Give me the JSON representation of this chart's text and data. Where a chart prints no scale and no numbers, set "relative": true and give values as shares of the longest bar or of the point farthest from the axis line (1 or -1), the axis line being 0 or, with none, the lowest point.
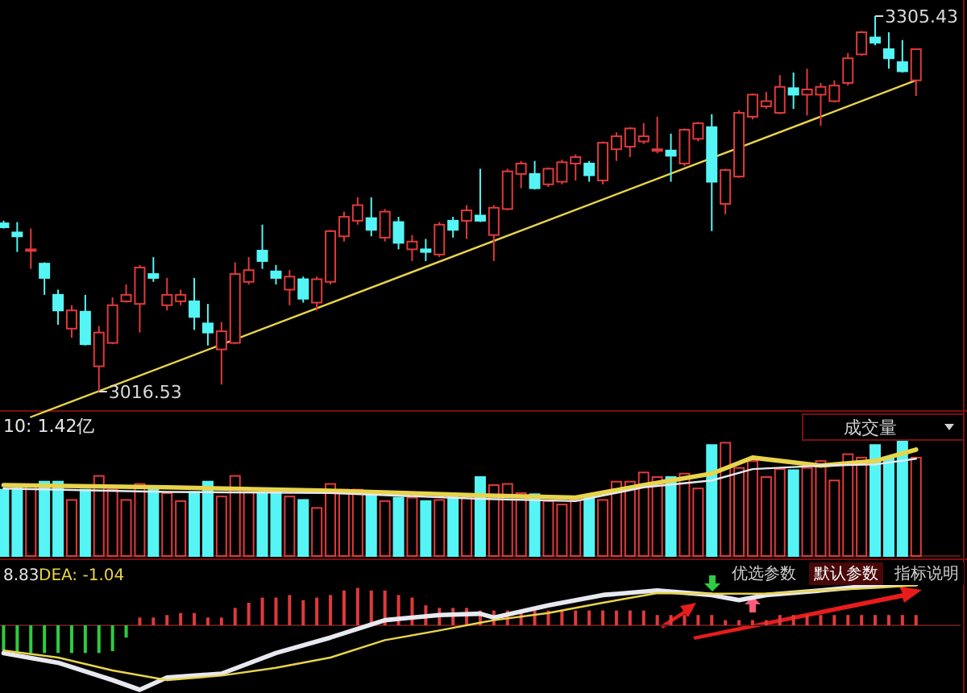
{
  "chart_data": [
    {
      "type": "candlestick",
      "categories": [
        null,
        null,
        null,
        null,
        null,
        null,
        null,
        null,
        null,
        null,
        null,
        null,
        null,
        null,
        null,
        null,
        null,
        null,
        null,
        null,
        null,
        null,
        null,
        null,
        null,
        null,
        null,
        null,
        null,
        null,
        null,
        null,
        null,
        null,
        null,
        null,
        null,
        null,
        null,
        null,
        null,
        null,
        null,
        null,
        null,
        null,
        null,
        null,
        null,
        null,
        null,
        null,
        null,
        null,
        null,
        null,
        null,
        null,
        null,
        null,
        null,
        null,
        null,
        null,
        null,
        null,
        null,
        null
      ],
      "ohlc": [
        [
          3146,
          3148,
          3142,
          3143
        ],
        [
          3139,
          3147,
          3124,
          3136
        ],
        [
          3126,
          3142,
          3111,
          3126
        ],
        [
          3115,
          3116,
          3091,
          3104
        ],
        [
          3091,
          3095,
          3068,
          3079
        ],
        [
          3065,
          3083,
          3058,
          3079
        ],
        [
          3078,
          3091,
          3052,
          3053
        ],
        [
          3036,
          3067,
          3016.53,
          3062
        ],
        [
          3054,
          3089,
          3053,
          3083
        ],
        [
          3086,
          3099,
          3085,
          3091
        ],
        [
          3084,
          3114,
          3062,
          3112
        ],
        [
          3107,
          3120,
          3101,
          3104
        ],
        [
          3083,
          3104,
          3079,
          3091
        ],
        [
          3086,
          3095,
          3083,
          3091
        ],
        [
          3086,
          3104,
          3064,
          3074
        ],
        [
          3069,
          3084,
          3052,
          3062
        ],
        [
          3049,
          3070,
          3022,
          3063
        ],
        [
          3054,
          3116,
          3053,
          3107
        ],
        [
          3101,
          3120,
          3099,
          3110
        ],
        [
          3125,
          3145,
          3111,
          3117
        ],
        [
          3109,
          3114,
          3099,
          3104
        ],
        [
          3095,
          3110,
          3083,
          3105
        ],
        [
          3103,
          3105,
          3085,
          3088
        ],
        [
          3085,
          3105,
          3079,
          3103
        ],
        [
          3101,
          3141,
          3099,
          3140
        ],
        [
          3136,
          3155,
          3132,
          3151
        ],
        [
          3148,
          3166,
          3145,
          3160
        ],
        [
          3150,
          3166,
          3136,
          3141
        ],
        [
          3135,
          3157,
          3132,
          3155
        ],
        [
          3147,
          3151,
          3126,
          3131
        ],
        [
          3126,
          3137,
          3117,
          3132
        ],
        [
          3126,
          3134,
          3117,
          3124
        ],
        [
          3122,
          3147,
          3120,
          3145
        ],
        [
          3148,
          3151,
          3135,
          3141
        ],
        [
          3148,
          3160,
          3134,
          3156
        ],
        [
          3152,
          3188,
          3147,
          3148
        ],
        [
          3137,
          3160,
          3117,
          3158
        ],
        [
          3157,
          3188,
          3156,
          3186
        ],
        [
          3184,
          3194,
          3173,
          3192
        ],
        [
          3184,
          3194,
          3172,
          3173
        ],
        [
          3176,
          3189,
          3174,
          3188
        ],
        [
          3178,
          3195,
          3176,
          3193
        ],
        [
          3192,
          3199,
          3179,
          3197
        ],
        [
          3192,
          3194,
          3178,
          3183
        ],
        [
          3179,
          3209,
          3176,
          3208
        ],
        [
          3203,
          3216,
          3194,
          3213
        ],
        [
          3205,
          3220,
          3197,
          3219
        ],
        [
          3209,
          3223,
          3207,
          3213
        ],
        [
          3202,
          3228,
          3200,
          3203
        ],
        [
          3202,
          3215,
          3178,
          3198
        ],
        [
          3192,
          3219,
          3190,
          3218
        ],
        [
          3211,
          3224,
          3209,
          3223
        ],
        [
          3220,
          3230,
          3140,
          3178
        ],
        [
          3161,
          3188,
          3153,
          3187
        ],
        [
          3182,
          3233,
          3181,
          3231
        ],
        [
          3228,
          3246,
          3226,
          3245
        ],
        [
          3236,
          3247,
          3234,
          3240
        ],
        [
          3231,
          3260,
          3230,
          3251
        ],
        [
          3250,
          3262,
          3234,
          3245
        ],
        [
          3245,
          3265,
          3229,
          3249
        ],
        [
          3245,
          3254,
          3221,
          3251
        ],
        [
          3240,
          3256,
          3239,
          3252
        ],
        [
          3254,
          3277,
          3252,
          3273
        ],
        [
          3276,
          3294,
          3275,
          3293
        ],
        [
          3289,
          3305.43,
          3283,
          3285
        ],
        [
          3280,
          3293,
          3265,
          3273
        ],
        [
          3270,
          3287,
          3262,
          3263
        ],
        [
          3256,
          3280,
          3244,
          3280
        ]
      ],
      "colors": [
        "#55f5f5",
        "#55f5f5",
        "#e03a3a",
        "#55f5f5",
        "#55f5f5",
        "#e03a3a",
        "#55f5f5",
        "#e03a3a",
        "#e03a3a",
        "#e03a3a",
        "#e03a3a",
        "#55f5f5",
        "#e03a3a",
        "#e03a3a",
        "#55f5f5",
        "#55f5f5",
        "#e03a3a",
        "#e03a3a",
        "#e03a3a",
        "#55f5f5",
        "#55f5f5",
        "#e03a3a",
        "#55f5f5",
        "#e03a3a",
        "#e03a3a",
        "#e03a3a",
        "#e03a3a",
        "#55f5f5",
        "#e03a3a",
        "#55f5f5",
        "#e03a3a",
        "#55f5f5",
        "#e03a3a",
        "#55f5f5",
        "#e03a3a",
        "#55f5f5",
        "#e03a3a",
        "#e03a3a",
        "#e03a3a",
        "#55f5f5",
        "#e03a3a",
        "#e03a3a",
        "#e03a3a",
        "#55f5f5",
        "#e03a3a",
        "#e03a3a",
        "#e03a3a",
        "#e03a3a",
        "#e03a3a",
        "#55f5f5",
        "#e03a3a",
        "#e03a3a",
        "#55f5f5",
        "#e03a3a",
        "#e03a3a",
        "#e03a3a",
        "#e03a3a",
        "#e03a3a",
        "#55f5f5",
        "#e03a3a",
        "#e03a3a",
        "#e03a3a",
        "#e03a3a",
        "#e03a3a",
        "#55f5f5",
        "#55f5f5",
        "#55f5f5",
        "#e03a3a"
      ],
      "series": [
        {
          "type": "line",
          "values": [
            null,
            null,
            2997,
            null,
            null,
            null,
            null,
            null,
            null,
            null,
            null,
            null,
            null,
            null,
            null,
            null,
            null,
            null,
            null,
            null,
            null,
            null,
            null,
            null,
            null,
            null,
            null,
            null,
            null,
            null,
            null,
            null,
            null,
            null,
            null,
            null,
            null,
            null,
            null,
            null,
            null,
            null,
            null,
            null,
            null,
            null,
            null,
            null,
            null,
            null,
            null,
            null,
            null,
            null,
            null,
            null,
            null,
            null,
            null,
            null,
            null,
            null,
            null,
            null,
            null,
            null,
            null,
            3256
          ],
          "color": "#e8d44a"
        }
      ],
      "annotations": [
        "3305.43",
        "3016.53"
      ]
    },
    {
      "type": "bar",
      "relative": true,
      "title": "10: 1.42亿",
      "categories": [
        null,
        null,
        null,
        null,
        null,
        null,
        null,
        null,
        null,
        null,
        null,
        null,
        null,
        null,
        null,
        null,
        null,
        null,
        null,
        null,
        null,
        null,
        null,
        null,
        null,
        null,
        null,
        null,
        null,
        null,
        null,
        null,
        null,
        null,
        null,
        null,
        null,
        null,
        null,
        null,
        null,
        null,
        null,
        null,
        null,
        null,
        null,
        null,
        null,
        null,
        null,
        null,
        null,
        null,
        null,
        null,
        null,
        null,
        null,
        null,
        null,
        null,
        null,
        null,
        null,
        null,
        null,
        null
      ],
      "values": [
        0.58,
        0.59,
        0.62,
        0.65,
        0.65,
        0.49,
        0.58,
        0.7,
        0.58,
        0.49,
        0.63,
        0.61,
        0.55,
        0.48,
        0.56,
        0.65,
        0.52,
        0.7,
        0.56,
        0.55,
        0.58,
        0.52,
        0.49,
        0.42,
        0.63,
        0.58,
        0.58,
        0.54,
        0.48,
        0.51,
        0.51,
        0.48,
        0.49,
        0.52,
        0.52,
        0.69,
        0.62,
        0.63,
        0.55,
        0.54,
        0.48,
        0.45,
        0.49,
        0.52,
        0.49,
        0.65,
        0.65,
        0.73,
        0.69,
        0.69,
        0.72,
        0.59,
        0.97,
        0.99,
        0.77,
        0.83,
        0.69,
        0.76,
        0.75,
        0.77,
        0.83,
        0.66,
        0.89,
        0.86,
        0.97,
        0.86,
        1,
        0.86
      ],
      "colors": [
        "#55f5f5",
        "#55f5f5",
        "#e03a3a",
        "#55f5f5",
        "#55f5f5",
        "#e03a3a",
        "#55f5f5",
        "#e03a3a",
        "#e03a3a",
        "#e03a3a",
        "#e03a3a",
        "#55f5f5",
        "#e03a3a",
        "#e03a3a",
        "#55f5f5",
        "#55f5f5",
        "#e03a3a",
        "#e03a3a",
        "#e03a3a",
        "#55f5f5",
        "#55f5f5",
        "#e03a3a",
        "#55f5f5",
        "#e03a3a",
        "#e03a3a",
        "#e03a3a",
        "#e03a3a",
        "#55f5f5",
        "#e03a3a",
        "#55f5f5",
        "#e03a3a",
        "#55f5f5",
        "#e03a3a",
        "#55f5f5",
        "#e03a3a",
        "#55f5f5",
        "#e03a3a",
        "#e03a3a",
        "#e03a3a",
        "#55f5f5",
        "#e03a3a",
        "#e03a3a",
        "#e03a3a",
        "#55f5f5",
        "#e03a3a",
        "#e03a3a",
        "#e03a3a",
        "#e03a3a",
        "#e03a3a",
        "#55f5f5",
        "#e03a3a",
        "#e03a3a",
        "#55f5f5",
        "#e03a3a",
        "#e03a3a",
        "#e03a3a",
        "#e03a3a",
        "#e03a3a",
        "#55f5f5",
        "#e03a3a",
        "#e03a3a",
        "#e03a3a",
        "#e03a3a",
        "#e03a3a",
        "#55f5f5",
        "#55f5f5",
        "#55f5f5",
        "#e03a3a"
      ],
      "series": [
        {
          "type": "line",
          "values": [
            0.62,
            null,
            null,
            null,
            null,
            null,
            null,
            null,
            null,
            null,
            null,
            null,
            0.6,
            null,
            null,
            null,
            null,
            null,
            null,
            null,
            null,
            null,
            null,
            null,
            0.57,
            null,
            null,
            null,
            null,
            null,
            null,
            null,
            null,
            null,
            null,
            0.53,
            null,
            null,
            null,
            null,
            null,
            null,
            0.51,
            null,
            null,
            null,
            null,
            0.62,
            null,
            null,
            null,
            null,
            0.72,
            null,
            null,
            0.86,
            null,
            null,
            null,
            null,
            0.79,
            null,
            null,
            null,
            0.83,
            null,
            null,
            0.93
          ],
          "color": "#e8d44a"
        },
        {
          "type": "line",
          "values": [
            0.59,
            null,
            null,
            null,
            null,
            null,
            null,
            null,
            null,
            null,
            null,
            null,
            0.56,
            null,
            null,
            null,
            null,
            null,
            null,
            null,
            null,
            null,
            null,
            null,
            0.55,
            null,
            null,
            null,
            null,
            null,
            null,
            null,
            null,
            null,
            null,
            0.5,
            null,
            null,
            null,
            null,
            null,
            null,
            0.48,
            null,
            null,
            null,
            null,
            0.6,
            null,
            null,
            null,
            null,
            0.66,
            null,
            null,
            0.76,
            null,
            null,
            null,
            null,
            0.79,
            null,
            null,
            null,
            0.8,
            null,
            null,
            0.85
          ],
          "color": "#e8e8f0"
        }
      ],
      "annotations": [
        "成交量"
      ]
    },
    {
      "type": "bar",
      "relative": true,
      "categories": [
        null,
        null,
        null,
        null,
        null,
        null,
        null,
        null,
        null,
        null,
        null,
        null,
        null,
        null,
        null,
        null,
        null,
        null,
        null,
        null,
        null,
        null,
        null,
        null,
        null,
        null,
        null,
        null,
        null,
        null,
        null,
        null,
        null,
        null,
        null,
        null,
        null,
        null,
        null,
        null,
        null,
        null,
        null,
        null,
        null,
        null,
        null,
        null,
        null,
        null,
        null,
        null,
        null,
        null,
        null,
        null,
        null,
        null,
        null,
        null,
        null,
        null,
        null,
        null,
        null,
        null,
        null,
        null
      ],
      "values": [
        -0.39,
        -0.43,
        -0.43,
        -0.43,
        -0.43,
        -0.43,
        -0.43,
        -0.43,
        -0.4,
        -0.19,
        0.12,
        0.12,
        0.16,
        0.19,
        0.19,
        0.12,
        0.12,
        0.27,
        0.35,
        0.43,
        0.43,
        0.47,
        0.39,
        0.43,
        0.47,
        0.54,
        0.58,
        0.54,
        0.54,
        0.47,
        0.43,
        0.31,
        0.27,
        0.27,
        0.27,
        0.23,
        0.23,
        0.23,
        0.23,
        0.23,
        0.23,
        0.23,
        0.23,
        0.23,
        0.23,
        0.23,
        0.23,
        0.23,
        0.16,
        0.16,
        0.16,
        0.16,
        0.16,
        0.08,
        0.08,
        0.08,
        0.08,
        0.16,
        0.16,
        0.16,
        0.16,
        0.16,
        0.16,
        0.16,
        0.16,
        0.16,
        0.16,
        0.16
      ],
      "colors": [
        "#2ecc40",
        "#2ecc40",
        "#2ecc40",
        "#2ecc40",
        "#2ecc40",
        "#2ecc40",
        "#2ecc40",
        "#2ecc40",
        "#2ecc40",
        "#2ecc40",
        "#e03a3a",
        "#e03a3a",
        "#e03a3a",
        "#e03a3a",
        "#e03a3a",
        "#e03a3a",
        "#e03a3a",
        "#e03a3a",
        "#e03a3a",
        "#e03a3a",
        "#e03a3a",
        "#e03a3a",
        "#e03a3a",
        "#e03a3a",
        "#e03a3a",
        "#e03a3a",
        "#e03a3a",
        "#e03a3a",
        "#e03a3a",
        "#e03a3a",
        "#e03a3a",
        "#e03a3a",
        "#e03a3a",
        "#e03a3a",
        "#e03a3a",
        "#e03a3a",
        "#e03a3a",
        "#e03a3a",
        "#e03a3a",
        "#e03a3a",
        "#e03a3a",
        "#e03a3a",
        "#e03a3a",
        "#e03a3a",
        "#e03a3a",
        "#e03a3a",
        "#e03a3a",
        "#e03a3a",
        "#e03a3a",
        "#e03a3a",
        "#e03a3a",
        "#e03a3a",
        "#e03a3a",
        "#e03a3a",
        "#e03a3a",
        "#e03a3a",
        "#e03a3a",
        "#e03a3a",
        "#e03a3a",
        "#e03a3a",
        "#e03a3a",
        "#e03a3a",
        "#e03a3a",
        "#e03a3a",
        "#e03a3a",
        "#e03a3a",
        "#e03a3a",
        "#e03a3a"
      ],
      "series": [
        {
          "type": "line",
          "values": [
            -0.43,
            null,
            null,
            null,
            -0.58,
            null,
            null,
            null,
            -0.85,
            null,
            -1,
            null,
            -0.81,
            null,
            null,
            null,
            -0.75,
            null,
            null,
            null,
            -0.43,
            null,
            null,
            null,
            -0.19,
            null,
            null,
            null,
            0.08,
            null,
            null,
            null,
            0.16,
            null,
            null,
            0.18,
            0.12,
            null,
            null,
            null,
            0.31,
            null,
            null,
            null,
            0.47,
            null,
            null,
            null,
            0.54,
            null,
            null,
            null,
            0.47,
            null,
            0.39,
            null,
            0.47,
            null,
            null,
            null,
            0.54,
            null,
            null,
            null,
            0.62,
            null,
            null,
            0.64
          ],
          "color": "#e8e8f0"
        },
        {
          "type": "line",
          "values": [
            -0.39,
            null,
            null,
            null,
            -0.5,
            null,
            null,
            null,
            -0.7,
            null,
            null,
            null,
            -0.85,
            null,
            null,
            null,
            -0.78,
            null,
            null,
            null,
            -0.66,
            null,
            null,
            null,
            -0.5,
            null,
            null,
            null,
            -0.23,
            null,
            null,
            null,
            -0.08,
            null,
            null,
            0.04,
            0.08,
            null,
            null,
            null,
            0.19,
            null,
            null,
            null,
            0.35,
            null,
            null,
            null,
            0.5,
            null,
            null,
            null,
            0.49,
            null,
            null,
            null,
            0.49,
            null,
            null,
            null,
            0.54,
            null,
            null,
            null,
            0.58,
            null,
            null,
            0.62
          ],
          "color": "#e8d44a"
        }
      ],
      "annotations": [
        "8.83",
        "DEA: -1.04",
        "优选参数",
        "默认参数",
        "指标说明"
      ]
    }
  ]
}
